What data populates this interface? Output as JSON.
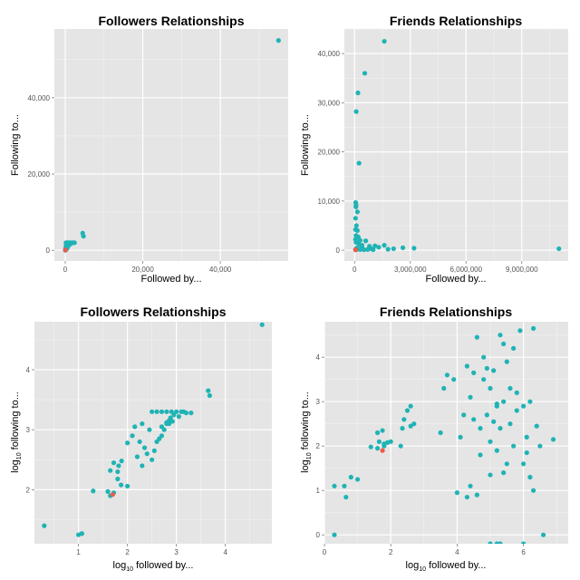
{
  "colors": {
    "panel_background": "#e5e5e5",
    "grid_major": "#ffffff",
    "grid_minor": "#f2f2f2",
    "series_default": "#1fb3b5",
    "series_highlight": "#f05a4a"
  },
  "chart_data": [
    {
      "type": "scatter",
      "title": "Followers Relationships",
      "xlabel": "Followed by...",
      "ylabel": "Following to...",
      "xlim": [
        -2800,
        57500
      ],
      "ylim": [
        -2800,
        58000
      ],
      "xticks": [
        0,
        20000,
        40000
      ],
      "xtick_labels": [
        "0",
        "20,000",
        "40,000"
      ],
      "yticks": [
        0,
        20000,
        40000
      ],
      "ytick_labels": [
        "0",
        "20,000",
        "40,000"
      ],
      "grid": true,
      "legend": "none",
      "series": [
        {
          "color_key": "series_default",
          "points": [
            [
              55000,
              55000
            ],
            [
              4500,
              4500
            ],
            [
              4700,
              3700
            ],
            [
              200,
              2000
            ],
            [
              500,
              2000
            ],
            [
              800,
              2000
            ],
            [
              1200,
              2000
            ],
            [
              1600,
              2000
            ],
            [
              2000,
              2000
            ],
            [
              2400,
              2000
            ],
            [
              300,
              1700
            ],
            [
              700,
              1600
            ],
            [
              1100,
              1500
            ],
            [
              1500,
              1800
            ],
            [
              900,
              1300
            ],
            [
              200,
              1200
            ],
            [
              400,
              1000
            ],
            [
              600,
              900
            ],
            [
              300,
              700
            ],
            [
              150,
              600
            ],
            [
              500,
              500
            ],
            [
              100,
              400
            ],
            [
              250,
              300
            ],
            [
              80,
              200
            ],
            [
              150,
              100
            ],
            [
              50,
              50
            ],
            [
              20,
              20
            ]
          ]
        },
        {
          "color_key": "series_highlight",
          "points": [
            [
              60,
              80
            ]
          ]
        }
      ]
    },
    {
      "type": "scatter",
      "title": "Friends Relationships",
      "xlabel": "Followed by...",
      "ylabel": "Following to...",
      "xlim": [
        -550000,
        11500000
      ],
      "ylim": [
        -2200,
        45000
      ],
      "xticks": [
        0,
        3000000,
        6000000,
        9000000
      ],
      "xtick_labels": [
        "0",
        "3,000,000",
        "6,000,000",
        "9,000,000"
      ],
      "yticks": [
        0,
        10000,
        20000,
        30000,
        40000
      ],
      "ytick_labels": [
        "0",
        "10,000",
        "20,000",
        "30,000",
        "40,000"
      ],
      "grid": true,
      "legend": "none",
      "series": [
        {
          "color_key": "series_default",
          "points": [
            [
              1600000,
              42500
            ],
            [
              550000,
              36000
            ],
            [
              180000,
              32000
            ],
            [
              90000,
              28200
            ],
            [
              240000,
              17700
            ],
            [
              60000,
              9700
            ],
            [
              80000,
              9200
            ],
            [
              70000,
              8800
            ],
            [
              150000,
              7800
            ],
            [
              50000,
              6500
            ],
            [
              100000,
              5000
            ],
            [
              50000,
              4200
            ],
            [
              150000,
              4000
            ],
            [
              80000,
              3000
            ],
            [
              200000,
              2700
            ],
            [
              50000,
              2200
            ],
            [
              300000,
              2000
            ],
            [
              80000,
              1600
            ],
            [
              200000,
              1400
            ],
            [
              250000,
              1100
            ],
            [
              400000,
              1000
            ],
            [
              600000,
              1900
            ],
            [
              400000,
              500
            ],
            [
              100000,
              400
            ],
            [
              800000,
              800
            ],
            [
              1100000,
              900
            ],
            [
              1300000,
              600
            ],
            [
              900000,
              300
            ],
            [
              1600000,
              1000
            ],
            [
              1800000,
              200
            ],
            [
              2100000,
              300
            ],
            [
              2600000,
              500
            ],
            [
              3200000,
              400
            ],
            [
              11000000,
              300
            ],
            [
              50000,
              100
            ],
            [
              150000,
              200
            ],
            [
              300000,
              150
            ],
            [
              500000,
              100
            ],
            [
              700000,
              150
            ],
            [
              1000000,
              100
            ]
          ]
        },
        {
          "color_key": "series_highlight",
          "points": [
            [
              50000,
              80
            ]
          ]
        }
      ]
    },
    {
      "type": "scatter",
      "title": "Followers Relationships",
      "xlabel": {
        "prefix": "log",
        "sub": "10",
        "suffix": " followed by..."
      },
      "ylabel": {
        "prefix": "log",
        "sub": "10",
        "suffix": " following to..."
      },
      "xlim": [
        0.1,
        4.95
      ],
      "ylim": [
        1.1,
        4.8
      ],
      "xticks": [
        1,
        2,
        3,
        4
      ],
      "xtick_labels": [
        "1",
        "2",
        "3",
        "4"
      ],
      "yticks": [
        2,
        3,
        4
      ],
      "ytick_labels": [
        "2",
        "3",
        "4"
      ],
      "grid": true,
      "legend": "none",
      "series": [
        {
          "color_key": "series_default",
          "points": [
            [
              0.3,
              1.4
            ],
            [
              1.0,
              1.25
            ],
            [
              1.07,
              1.27
            ],
            [
              1.3,
              1.98
            ],
            [
              1.6,
              1.97
            ],
            [
              1.65,
              1.9
            ],
            [
              1.72,
              1.95
            ],
            [
              1.65,
              2.32
            ],
            [
              1.72,
              2.45
            ],
            [
              1.8,
              2.3
            ],
            [
              1.82,
              2.4
            ],
            [
              1.88,
              2.48
            ],
            [
              1.8,
              2.18
            ],
            [
              1.87,
              2.08
            ],
            [
              2.0,
              2.06
            ],
            [
              2.0,
              2.78
            ],
            [
              2.1,
              2.9
            ],
            [
              2.15,
              3.05
            ],
            [
              2.2,
              2.55
            ],
            [
              2.25,
              2.8
            ],
            [
              2.3,
              3.1
            ],
            [
              2.3,
              2.4
            ],
            [
              2.35,
              2.7
            ],
            [
              2.4,
              2.6
            ],
            [
              2.45,
              3.0
            ],
            [
              2.5,
              2.5
            ],
            [
              2.5,
              3.3
            ],
            [
              2.55,
              2.65
            ],
            [
              2.6,
              2.8
            ],
            [
              2.6,
              3.3
            ],
            [
              2.65,
              2.85
            ],
            [
              2.7,
              3.3
            ],
            [
              2.7,
              2.9
            ],
            [
              2.75,
              3.0
            ],
            [
              2.8,
              3.3
            ],
            [
              2.8,
              3.12
            ],
            [
              2.85,
              3.15
            ],
            [
              2.88,
              3.2
            ],
            [
              2.9,
              3.3
            ],
            [
              2.95,
              3.25
            ],
            [
              3.0,
              3.3
            ],
            [
              3.05,
              3.22
            ],
            [
              3.1,
              3.3
            ],
            [
              3.15,
              3.3
            ],
            [
              3.2,
              3.28
            ],
            [
              3.3,
              3.28
            ],
            [
              3.65,
              3.65
            ],
            [
              3.68,
              3.57
            ],
            [
              4.75,
              4.75
            ],
            [
              2.8,
              3.1
            ],
            [
              2.85,
              3.1
            ],
            [
              2.92,
              3.14
            ],
            [
              2.7,
              3.05
            ]
          ]
        },
        {
          "color_key": "series_highlight",
          "points": [
            [
              1.7,
              1.92
            ]
          ]
        }
      ]
    },
    {
      "type": "scatter",
      "title": "Friends Relationships",
      "xlabel": {
        "prefix": "log",
        "sub": "10",
        "suffix": " followed by..."
      },
      "ylabel": {
        "prefix": "log",
        "sub": "10",
        "suffix": " following to..."
      },
      "xlim": [
        0,
        7.35
      ],
      "ylim": [
        -0.2,
        4.8
      ],
      "xticks": [
        0,
        2,
        4,
        6
      ],
      "xtick_labels": [
        "0",
        "2",
        "4",
        "6"
      ],
      "yticks": [
        0,
        1,
        2,
        3,
        4
      ],
      "ytick_labels": [
        "0",
        "1",
        "2",
        "3",
        "4"
      ],
      "grid": true,
      "legend": "none",
      "series": [
        {
          "color_key": "series_default",
          "points": [
            [
              0.3,
              0.0
            ],
            [
              0.3,
              1.1
            ],
            [
              0.6,
              1.1
            ],
            [
              0.65,
              0.85
            ],
            [
              0.8,
              1.3
            ],
            [
              1.0,
              1.25
            ],
            [
              1.4,
              1.98
            ],
            [
              1.6,
              2.3
            ],
            [
              1.6,
              1.95
            ],
            [
              1.65,
              2.1
            ],
            [
              1.75,
              2.35
            ],
            [
              1.8,
              2.0
            ],
            [
              1.8,
              2.05
            ],
            [
              1.9,
              2.08
            ],
            [
              2.0,
              2.1
            ],
            [
              2.3,
              2.0
            ],
            [
              2.35,
              2.4
            ],
            [
              2.4,
              2.6
            ],
            [
              2.5,
              2.8
            ],
            [
              2.6,
              2.9
            ],
            [
              2.6,
              2.45
            ],
            [
              2.7,
              2.5
            ],
            [
              3.5,
              2.3
            ],
            [
              3.6,
              3.3
            ],
            [
              3.7,
              3.6
            ],
            [
              3.9,
              3.5
            ],
            [
              4.0,
              0.95
            ],
            [
              4.1,
              2.2
            ],
            [
              4.2,
              2.7
            ],
            [
              4.3,
              0.85
            ],
            [
              4.3,
              3.8
            ],
            [
              4.4,
              1.1
            ],
            [
              4.4,
              3.1
            ],
            [
              4.5,
              2.6
            ],
            [
              4.5,
              3.65
            ],
            [
              4.6,
              0.9
            ],
            [
              4.6,
              4.45
            ],
            [
              4.7,
              1.8
            ],
            [
              4.7,
              2.4
            ],
            [
              4.8,
              3.5
            ],
            [
              4.8,
              4.0
            ],
            [
              4.9,
              2.7
            ],
            [
              4.9,
              3.75
            ],
            [
              5.0,
              3.3
            ],
            [
              5.0,
              1.35
            ],
            [
              5.0,
              2.1
            ],
            [
              5.1,
              2.55
            ],
            [
              5.1,
              3.7
            ],
            [
              5.2,
              2.95
            ],
            [
              5.2,
              2.9
            ],
            [
              5.2,
              1.9
            ],
            [
              5.3,
              4.5
            ],
            [
              5.3,
              2.4
            ],
            [
              5.4,
              3.0
            ],
            [
              5.4,
              1.4
            ],
            [
              5.4,
              4.3
            ],
            [
              5.5,
              3.9
            ],
            [
              5.5,
              1.6
            ],
            [
              5.6,
              2.5
            ],
            [
              5.6,
              3.3
            ],
            [
              5.7,
              4.2
            ],
            [
              5.7,
              2.0
            ],
            [
              5.8,
              2.8
            ],
            [
              5.8,
              3.2
            ],
            [
              5.9,
              4.6
            ],
            [
              6.0,
              1.6
            ],
            [
              6.0,
              2.9
            ],
            [
              6.1,
              2.2
            ],
            [
              6.1,
              1.85
            ],
            [
              6.2,
              1.3
            ],
            [
              6.2,
              3.0
            ],
            [
              6.3,
              4.65
            ],
            [
              6.3,
              1.0
            ],
            [
              6.4,
              2.45
            ],
            [
              6.5,
              2.0
            ],
            [
              6.6,
              0.0
            ],
            [
              6.9,
              2.15
            ],
            [
              5.0,
              -0.2
            ],
            [
              5.2,
              -0.2
            ],
            [
              5.3,
              -0.2
            ],
            [
              6.0,
              -0.2
            ]
          ]
        },
        {
          "color_key": "series_highlight",
          "points": [
            [
              1.75,
              1.9
            ]
          ]
        }
      ]
    }
  ]
}
